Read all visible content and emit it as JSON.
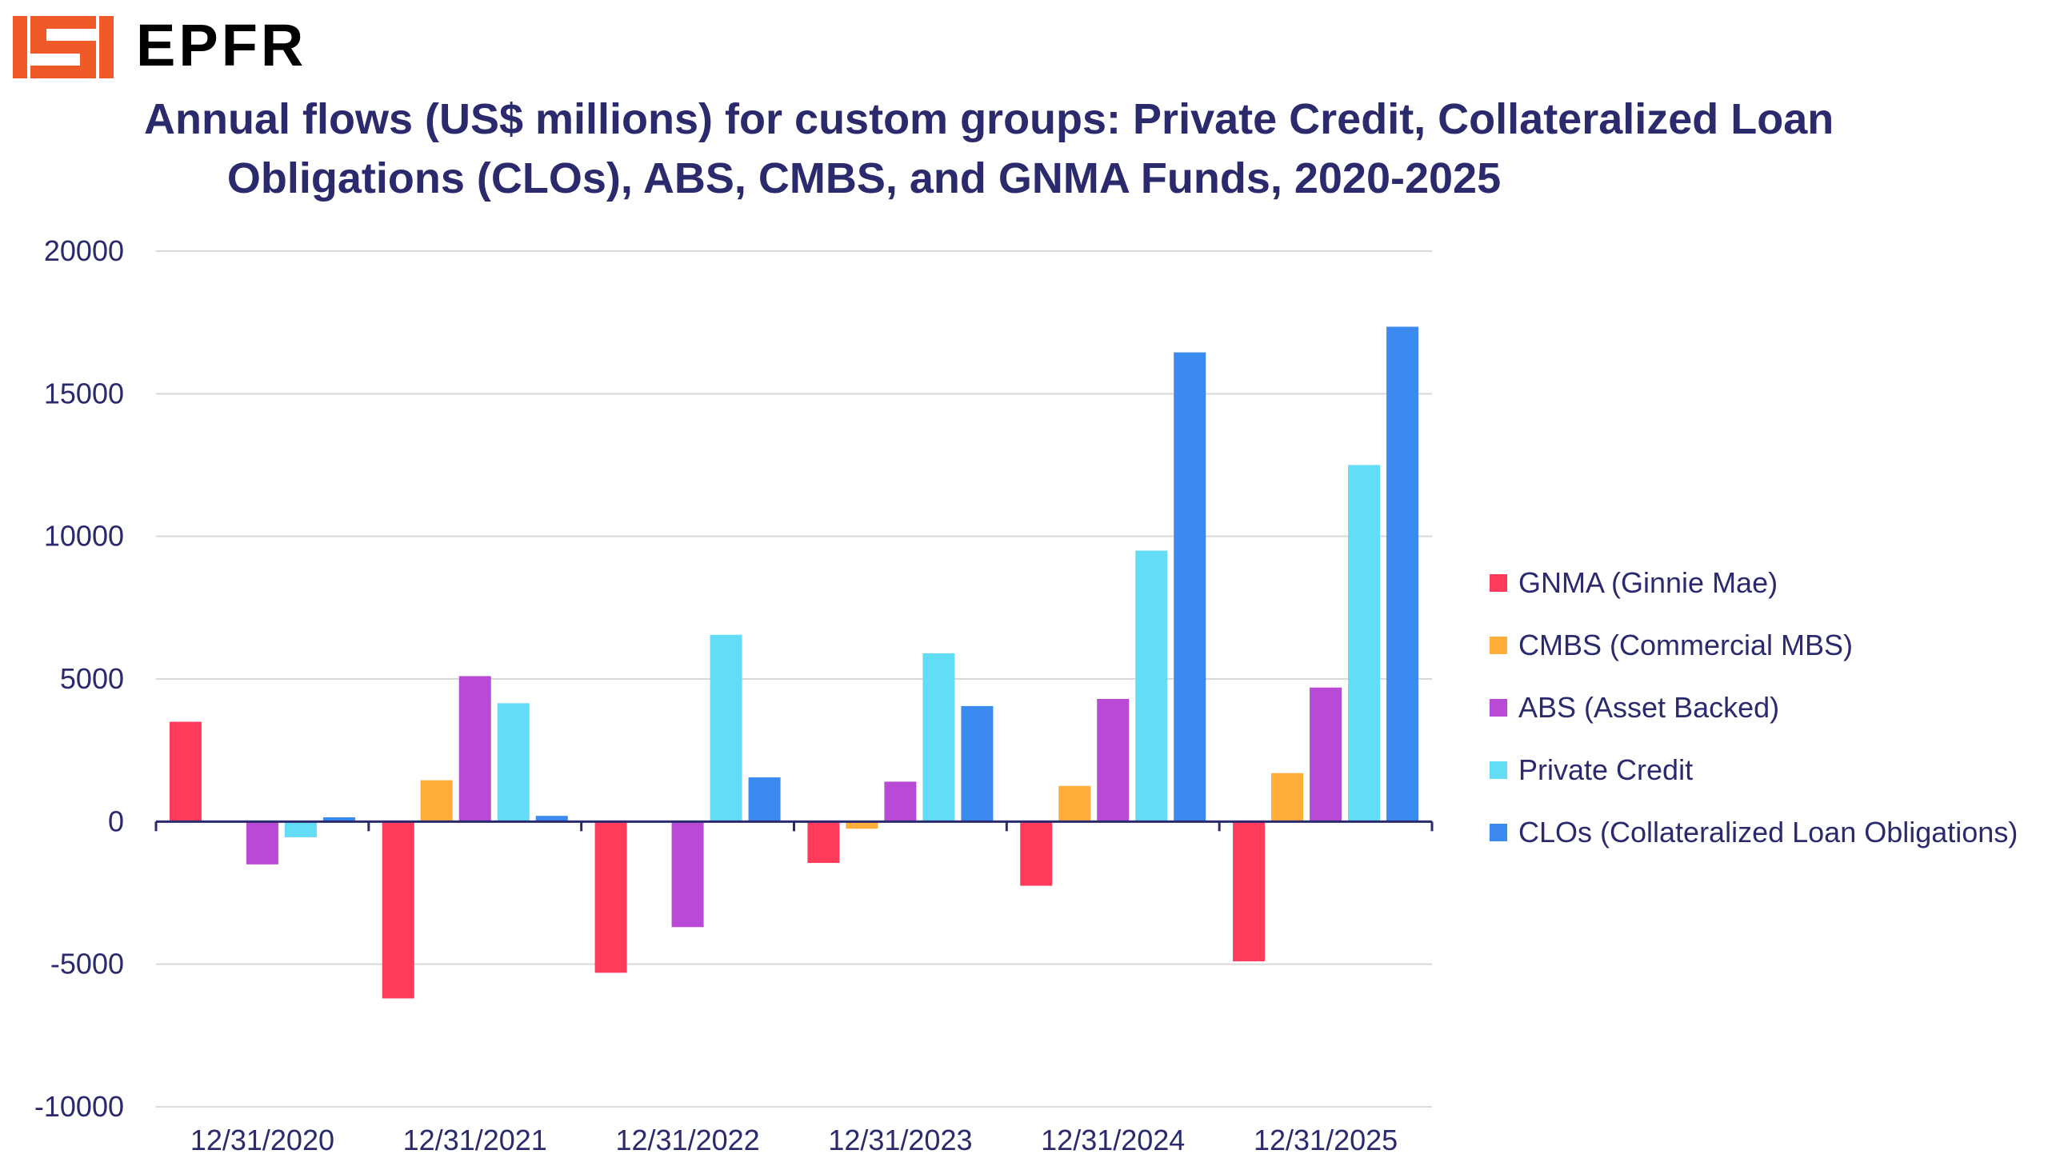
{
  "header": {
    "brand": "EPFR",
    "title_line1": "Annual flows (US$ millions) for custom groups: Private Credit, Collateralized Loan",
    "title_line2": "Obligations (CLOs), ABS, CMBS, and GNMA Funds, 2020-2025",
    "brand_color": "#f05a28"
  },
  "chart_data": {
    "type": "bar",
    "title": "Annual flows (US$ millions) for custom groups: Private Credit, Collateralized Loan Obligations (CLOs), ABS, CMBS, and GNMA Funds, 2020-2025",
    "xlabel": "",
    "ylabel": "",
    "ylim": [
      -10000,
      20000
    ],
    "yticks": [
      20000,
      15000,
      10000,
      5000,
      0,
      -5000,
      -10000
    ],
    "grid": true,
    "legend_position": "right",
    "categories": [
      "12/31/2020",
      "12/31/2021",
      "12/31/2022",
      "12/31/2023",
      "12/31/2024",
      "12/31/2025"
    ],
    "series": [
      {
        "name": "GNMA (Ginnie Mae)",
        "color": "#ff3b5c",
        "values": [
          3500,
          -6200,
          -5300,
          -1450,
          -2250,
          -4900
        ]
      },
      {
        "name": "CMBS (Commercial MBS)",
        "color": "#ffad3b",
        "values": [
          0,
          1450,
          0,
          -250,
          1250,
          1700
        ]
      },
      {
        "name": "ABS (Asset Backed)",
        "color": "#b84ad6",
        "values": [
          -1500,
          5100,
          -3700,
          1400,
          4300,
          4700
        ]
      },
      {
        "name": "Private Credit",
        "color": "#63dcf5",
        "values": [
          -550,
          4150,
          6550,
          5900,
          9500,
          12500
        ]
      },
      {
        "name": "CLOs (Collateralized Loan Obligations)",
        "color": "#3a8af0",
        "values": [
          150,
          200,
          1550,
          4050,
          16450,
          17350
        ]
      }
    ]
  }
}
